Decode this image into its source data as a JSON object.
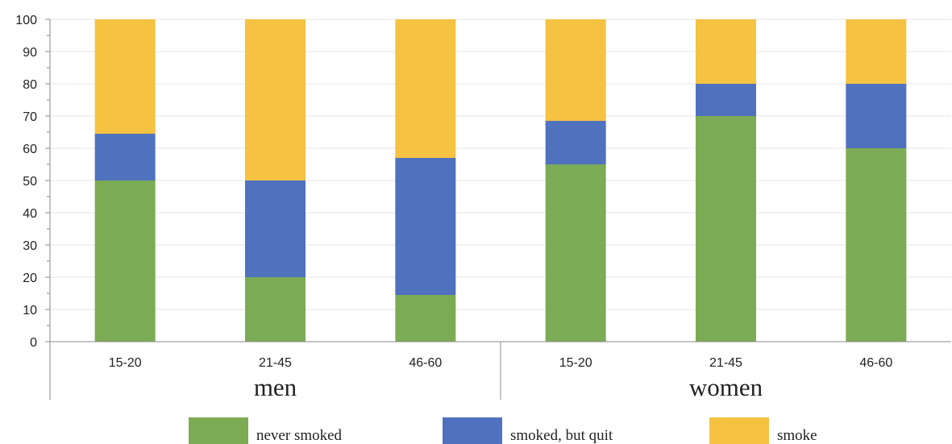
{
  "chart_data": {
    "type": "bar",
    "stacked": true,
    "title": "",
    "xlabel": "",
    "ylabel": "",
    "ylim": [
      0,
      100
    ],
    "y_ticks": [
      "0",
      "10",
      "20",
      "30",
      "40",
      "50",
      "60",
      "70",
      "80",
      "90",
      "100"
    ],
    "grid": true,
    "categories": [
      "15-20",
      "21-45",
      "46-60",
      "15-20",
      "21-45",
      "46-60"
    ],
    "groups": [
      "men",
      "women"
    ],
    "series": [
      {
        "name": "never smoked",
        "color": "#7CAB55",
        "values": [
          50,
          20,
          14.5,
          55,
          70,
          60
        ]
      },
      {
        "name": "smoked, but quit",
        "color": "#4F71BE",
        "values": [
          14.5,
          30,
          42.5,
          13.5,
          10,
          20
        ]
      },
      {
        "name": "smoke",
        "color": "#F5C242",
        "values": [
          35.5,
          50,
          43,
          31.5,
          20,
          20
        ]
      }
    ],
    "legend_position": "bottom"
  }
}
